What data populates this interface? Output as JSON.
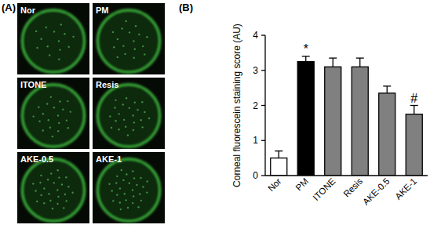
{
  "panels": {
    "a": "(A)",
    "b": "(B)"
  },
  "images": [
    "Nor",
    "PM",
    "ITONE",
    "Resis",
    "AKE-0.5",
    "AKE-1"
  ],
  "chart_data": {
    "type": "bar",
    "y_label": "Corneal fluorescein staining score (AU)",
    "categories": [
      "Nor",
      "PM",
      "ITONE",
      "Resis",
      "AKE-0.5",
      "AKE-1"
    ],
    "values": [
      0.5,
      3.25,
      3.1,
      3.1,
      2.35,
      1.75
    ],
    "errors": [
      0.2,
      0.15,
      0.25,
      0.25,
      0.2,
      0.25
    ],
    "colors": [
      "#ffffff",
      "#000000",
      "#808080",
      "#808080",
      "#808080",
      "#808080"
    ],
    "ylim": [
      0,
      4
    ],
    "yticks": [
      0,
      1,
      2,
      3,
      4
    ],
    "grid": false,
    "annotations": [
      {
        "text": "*",
        "category": "PM"
      },
      {
        "text": "#",
        "category": "AKE-1"
      }
    ]
  }
}
